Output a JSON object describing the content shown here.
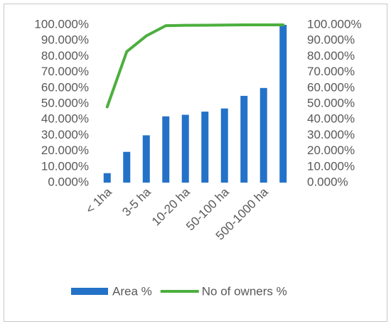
{
  "chart_data": {
    "type": "bar",
    "categories": [
      "< 1ha",
      null,
      "3-5 ha",
      null,
      "10-20 ha",
      null,
      "50-100 ha",
      null,
      "500-1000 ha",
      null
    ],
    "series": [
      {
        "name": "Area %",
        "type": "bar",
        "color": "#2472c8",
        "values": [
          6,
          19.5,
          30,
          42,
          43,
          45,
          47,
          55,
          60,
          100
        ]
      },
      {
        "name": "No of owners %",
        "type": "line",
        "axis": "y2",
        "color": "#4caf3e",
        "values": [
          48,
          83,
          93,
          99.5,
          99.7,
          99.8,
          99.9,
          100,
          100,
          100
        ]
      }
    ],
    "ylim": [
      0,
      100
    ],
    "yticks": [
      {
        "value": 0,
        "label": "0.000%"
      },
      {
        "value": 10,
        "label": "10.000%"
      },
      {
        "value": 20,
        "label": "20.000%"
      },
      {
        "value": 30,
        "label": "30.000%"
      },
      {
        "value": 40,
        "label": "40.000%"
      },
      {
        "value": 50,
        "label": "50.000%"
      },
      {
        "value": 60,
        "label": "60.000%"
      },
      {
        "value": 70,
        "label": "70.000%"
      },
      {
        "value": 80,
        "label": "80.000%"
      },
      {
        "value": 90,
        "label": "90.000%"
      },
      {
        "value": 100,
        "label": "100.000%"
      }
    ],
    "y2lim": [
      0,
      100
    ],
    "y2ticks": [
      {
        "value": 0,
        "label": "0.000%"
      },
      {
        "value": 10,
        "label": "10.000%"
      },
      {
        "value": 20,
        "label": "20.000%"
      },
      {
        "value": 30,
        "label": "30.000%"
      },
      {
        "value": 40,
        "label": "40.000%"
      },
      {
        "value": 50,
        "label": "50.000%"
      },
      {
        "value": 60,
        "label": "60.000%"
      },
      {
        "value": 70,
        "label": "70.000%"
      },
      {
        "value": 80,
        "label": "80.000%"
      },
      {
        "value": 90,
        "label": "90.000%"
      },
      {
        "value": 100,
        "label": "100.000%"
      }
    ],
    "legend": "bottom"
  }
}
